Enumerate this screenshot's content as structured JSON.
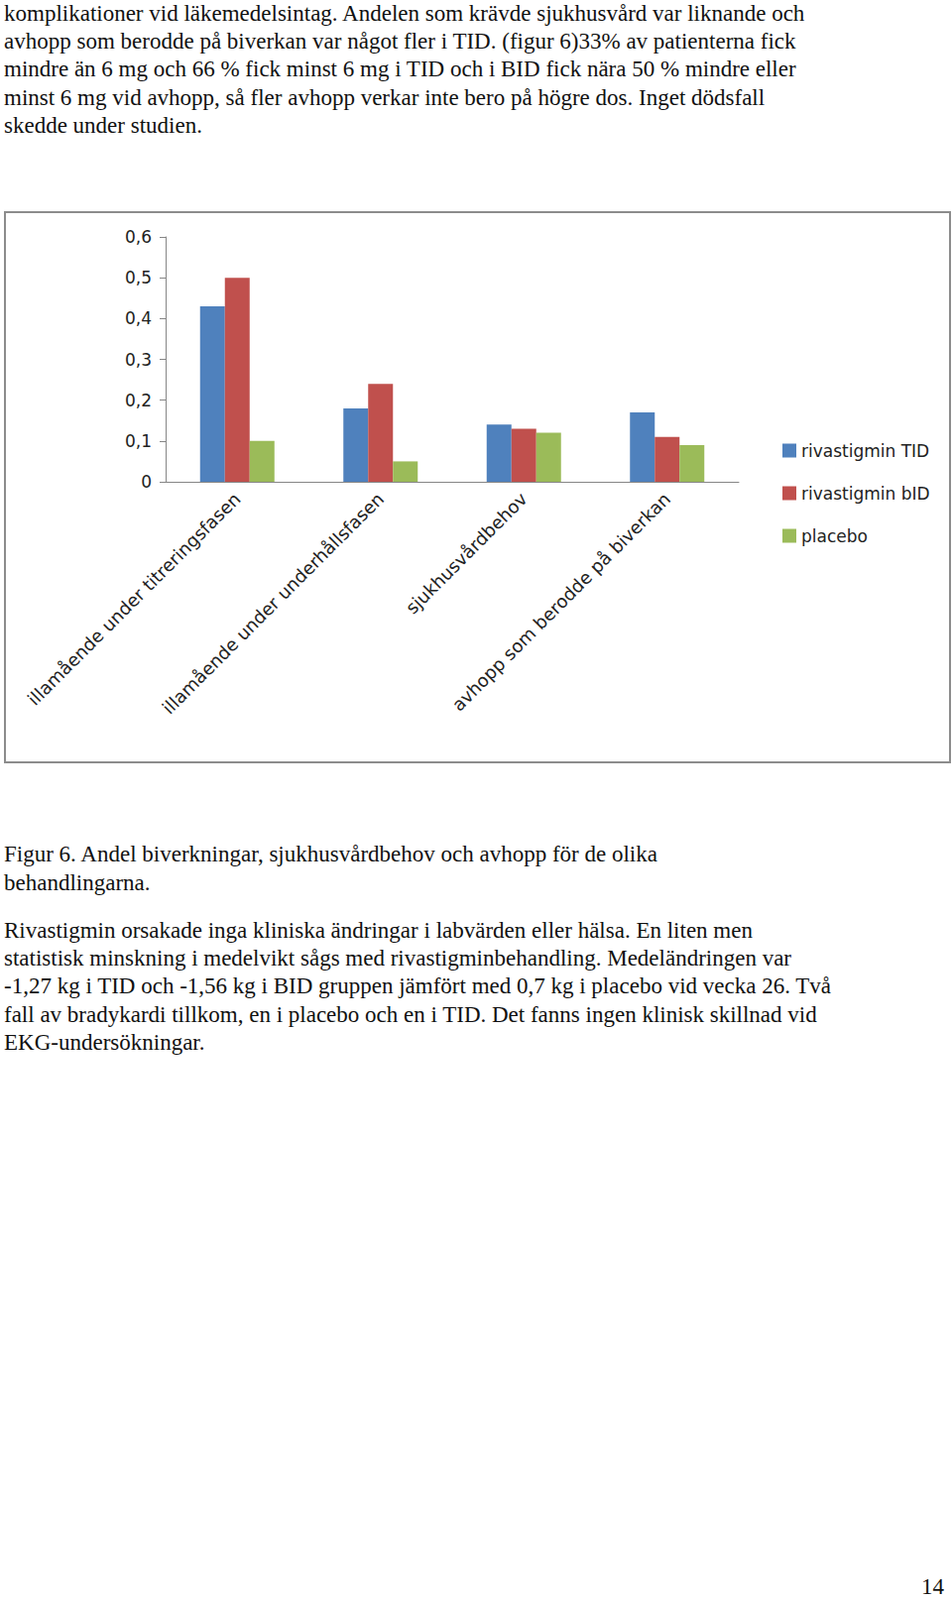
{
  "text_above": [
    "komplikationer vid läkemedelsintag. Andelen som krävde sjukhusvård var liknande och",
    "avhopp som berodde på biverkan var något fler i TID. (figur 6)33% av patienterna fick",
    "mindre än 6 mg och 66 % fick minst 6 mg i TID och i BID fick nära 50 % mindre eller",
    "minst 6 mg vid avhopp, så fler avhopp verkar inte bero på högre dos. Inget dödsfall",
    "skedde under studien."
  ],
  "chart_data": {
    "type": "bar",
    "categories": [
      "illamående under titreringsfasen",
      "illamående under underhållsfasen",
      "sjukhusvårdbehov",
      "avhopp som berodde på biverkan"
    ],
    "series": [
      {
        "name": "rivastigmin TID",
        "color": "#4f81bd",
        "values": [
          0.43,
          0.18,
          0.14,
          0.17
        ]
      },
      {
        "name": "rivastigmin bID",
        "color": "#c0504d",
        "values": [
          0.5,
          0.24,
          0.13,
          0.11
        ]
      },
      {
        "name": "placebo",
        "color": "#9bbb59",
        "values": [
          0.1,
          0.05,
          0.12,
          0.09
        ]
      }
    ],
    "ylim": [
      0,
      0.6
    ],
    "yticks": [
      0,
      {
        "value": 0.1,
        "label": "0,1"
      },
      {
        "value": 0.2,
        "label": "0,2"
      },
      {
        "value": 0.3,
        "label": "0,3"
      },
      {
        "value": 0.4,
        "label": "0,4"
      },
      {
        "value": 0.5,
        "label": "0,5"
      },
      {
        "value": 0.6,
        "label": "0,6"
      }
    ],
    "grid": false,
    "legend": "right"
  },
  "caption": [
    "Figur 6. Andel biverkningar, sjukhusvårdbehov och avhopp för de olika",
    "behandlingarna."
  ],
  "text_below": [
    "Rivastigmin orsakade inga kliniska ändringar i labvärden eller hälsa. En liten men",
    "statistisk minskning i medelvikt sågs med rivastigminbehandling. Medeländringen var",
    "-1,27 kg i TID och -1,56 kg i BID gruppen jämfört med 0,7 kg i placebo vid vecka 26. Två",
    "fall av bradykardi tillkom, en i placebo och en i TID. Det fanns ingen klinisk skillnad vid",
    "EKG-undersökningar."
  ],
  "page_number": 14
}
